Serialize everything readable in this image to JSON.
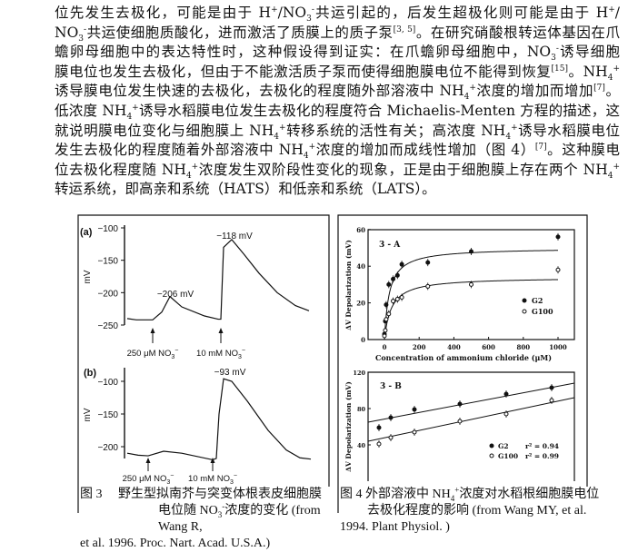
{
  "paragraph": [
    "位先发生去极化，可能是由于 H^{+}/NO_{3}^{-}共运引起的，后发生超极化则可能是由于 H^{+}/",
    "NO_{3}^{-}共运使细胞质酸化，进而激活了质膜上的质子泵^{[3, 5]}。在研究硝酸根转运体基因在爪",
    "蟾卵母细胞中的表达特性时，这种假设得到证实：在爪蟾卵母细胞中，NO_{3}^{-}诱导细胞",
    "膜电位也发生去极化，但由于不能激活质子泵而使得细胞膜电位不能得到恢复^{[15]}。NH_{4}^{+}",
    "诱导膜电位发生快速的去极化，去极化的程度随外部溶液中 NH_{4}^{+}浓度的增加而增加^{[7]}。",
    "低浓度 NH_{4}^{+}诱导水稻膜电位发生去极化的程度符合 Michaelis-Menten 方程的描述，这",
    "就说明膜电位变化与细胞膜上 NH_{4}^{+}转移系统的活性有关；高浓度 NH_{4}^{+}诱导水稻膜电位",
    "发生去极化的程度随着外部溶液中 NH_{4}^{+}浓度的增加而成线性增加（图 4）^{[7]}。这种膜电",
    "位去极化程度随 NH_{4}^{+}浓度发生双阶段性变化的现象，正是由于细胞膜上存在两个 NH_{4}^{+}",
    "转运系统，即高亲和系统（HATS）和低亲和系统（LATS）。"
  ],
  "figure3": {
    "caption": [
      "图 3　 野生型拟南芥与突变体根表皮细胞膜",
      "电位随 NO_{3}^{-}浓度的变化 (from Wang R,",
      "et al. 1996. Proc. Nart. Acad. U.S.A.)"
    ]
  },
  "figure4": {
    "caption": [
      "图 4 外部溶液中 NH_{4}^{+}浓度对水稻根细胞膜电位",
      "去极化程度的影响 (from Wang MY, et al.",
      "1994. Plant Physiol. )"
    ]
  },
  "chart_data": [
    {
      "type": "line",
      "panel": "(a)",
      "ylabel": "mV",
      "yticks": [
        "−100",
        "−150",
        "−200",
        "−250"
      ],
      "ylim": [
        -250,
        -100
      ],
      "trace_mV": [
        -240,
        -242,
        -242,
        -230,
        -206,
        -222,
        -236,
        -241,
        -241,
        -130,
        -118,
        -140,
        -170,
        -200,
        -220,
        -228
      ],
      "annotations": [
        "−206 mV",
        "−118 mV"
      ],
      "stimuli": [
        "250 μM NO_{3}^{−}",
        "10 mM NO_{3}^{−}"
      ]
    },
    {
      "type": "line",
      "panel": "(b)",
      "ylabel": "mV",
      "yticks": [
        "−100",
        "−150",
        "−200"
      ],
      "ylim": [
        -220,
        -90
      ],
      "trace_mV": [
        -210,
        -213,
        -214,
        -207,
        -210,
        -220,
        -218,
        -150,
        -96,
        -100,
        -130,
        -175,
        -205,
        -217,
        -219
      ],
      "annotations": [
        "−93 mV"
      ],
      "stimuli": [
        "250 μM NO_{3}^{−}",
        "10 mM NO_{3}^{−}"
      ]
    },
    {
      "type": "scatter",
      "panel": "3 - A",
      "xlabel": "Concentration of ammonium chloride (μM)",
      "ylabel": "ΔV Depolarization (mV)",
      "xticks": [
        "0",
        "200",
        "400",
        "600",
        "800",
        "1000"
      ],
      "yticks": [
        "0",
        "20",
        "40",
        "60"
      ],
      "xlim": [
        -100,
        1100
      ],
      "ylim": [
        0,
        60
      ],
      "legend": "right",
      "series": [
        {
          "name": "G2",
          "marker": "filled",
          "x": [
            0,
            5,
            10,
            25,
            50,
            75,
            100,
            250,
            500,
            1000
          ],
          "y": [
            3,
            10,
            19,
            30,
            33,
            35,
            41,
            42,
            48,
            56
          ],
          "fit_vmax": 50,
          "fit_km": 28
        },
        {
          "name": "G100",
          "marker": "open",
          "x": [
            0,
            5,
            10,
            25,
            50,
            75,
            100,
            250,
            500,
            1000
          ],
          "y": [
            2,
            5,
            11,
            14,
            21,
            22,
            23,
            29,
            30,
            38
          ],
          "fit_vmax": 34,
          "fit_km": 40
        }
      ]
    },
    {
      "type": "scatter",
      "panel": "3 - B",
      "ylabel": "ΔV Depolarization (mV)",
      "yticks": [
        "40",
        "80",
        "120"
      ],
      "ylim": [
        0,
        120
      ],
      "legend": "bottom-right",
      "series": [
        {
          "name": "G2",
          "r2": "r² = 0.94",
          "marker": "filled",
          "y": [
            59,
            70,
            79,
            85,
            96,
            103
          ]
        },
        {
          "name": "G100",
          "r2": "r² = 0.99",
          "marker": "open",
          "y": [
            41,
            48,
            54,
            66,
            74,
            89
          ]
        }
      ]
    }
  ]
}
